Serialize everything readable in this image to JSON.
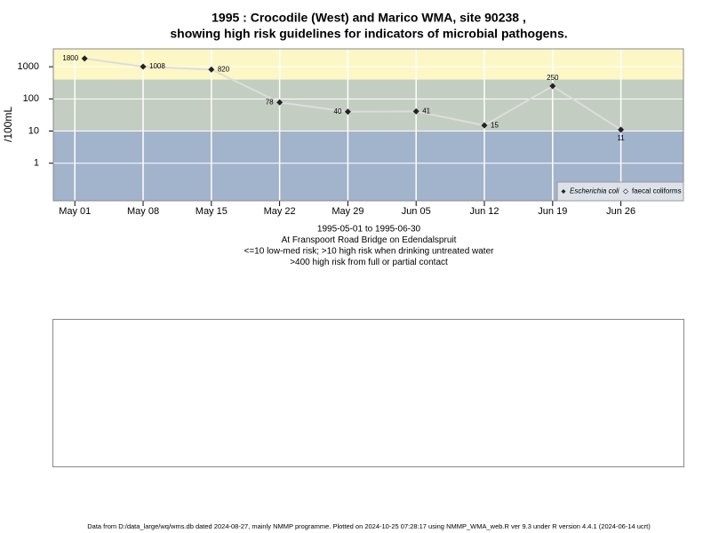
{
  "chart_data": {
    "type": "line",
    "title": "1995 : Crocodile (West) and Marico WMA, site 90238 ,",
    "title2": "showing high risk guidelines for indicators of microbial pathogens.",
    "ylabel": "/100mL",
    "subtitle_lines": [
      "1995-05-01 to 1995-06-30",
      "At Franspoort Road Bridge on Edendalspruit",
      "<=10 low-med risk; >10 high risk when drinking untreated water",
      ">400 high risk from full or partial contact"
    ],
    "footer": "Data from D:/data_large/wq/wms.db dated 2024-08-27, mainly NMMP programme. Plotted on 2024-10-25 07:28:17 using NMMP_WMA_web.R ver 9.3 under R version 4.4.1 (2024-06-14 ucrt)",
    "log_y": true,
    "grid": true,
    "legend": "bottom-right",
    "ylim": [
      0.068,
      3600
    ],
    "yticks": [
      1,
      10,
      100,
      1000
    ],
    "xlim": [
      "1995-04-28T19:00:00Z",
      "1995-07-02T10:00:00Z"
    ],
    "xticks": [
      {
        "value": "1995-05-01",
        "label": "May 01"
      },
      {
        "value": "1995-05-08",
        "label": "May 08"
      },
      {
        "value": "1995-05-15",
        "label": "May 15"
      },
      {
        "value": "1995-05-22",
        "label": "May 22"
      },
      {
        "value": "1995-05-29",
        "label": "May 29"
      },
      {
        "value": "1995-06-05",
        "label": "Jun 05"
      },
      {
        "value": "1995-06-12",
        "label": "Jun 12"
      },
      {
        "value": "1995-06-19",
        "label": "Jun 19"
      },
      {
        "value": "1995-06-26",
        "label": "Jun 26"
      }
    ],
    "bands": [
      {
        "to": 10,
        "color": "#a2b3cc"
      },
      {
        "from": 10,
        "to": 400,
        "color": "#c3cdc1"
      },
      {
        "from": 400,
        "color": "#fdf7c5"
      }
    ],
    "x": [
      "1995-05-02",
      "1995-05-08",
      "1995-05-15",
      "1995-05-22",
      "1995-05-29",
      "1995-06-05",
      "1995-06-12",
      "1995-06-19",
      "1995-06-26"
    ],
    "series": [
      {
        "name": "Escherichia coli",
        "color": "#222222",
        "line_color": "#dddddd",
        "values": [
          1800,
          1008,
          820,
          78,
          40,
          41,
          15,
          250,
          11
        ]
      },
      {
        "name": "faecal coliforms",
        "color": "#444444",
        "values": [
          null,
          null,
          null,
          null,
          null,
          null,
          null,
          null,
          null
        ]
      }
    ]
  }
}
